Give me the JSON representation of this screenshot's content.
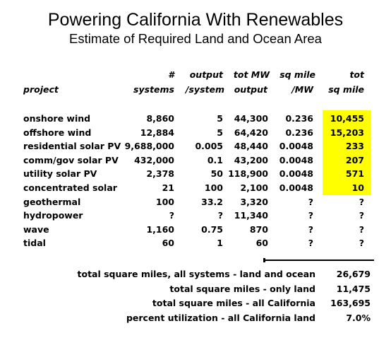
{
  "title": "Powering California With Renewables",
  "subtitle": "Estimate of Required Land and Ocean Area",
  "headers": {
    "project": "project",
    "systems_line1": "#",
    "systems_line2": "systems",
    "output_line1": "output",
    "output_line2": "/system",
    "totmw_line1": "tot MW",
    "totmw_line2": "output",
    "sqmw_line1": "sq mile",
    "sqmw_line2": "/MW",
    "totsq_line1": "tot",
    "totsq_line2": "sq mile"
  },
  "rows": [
    {
      "project": "onshore wind",
      "systems": "8,860",
      "output": "5",
      "tot_mw": "44,300",
      "sq_mw": "0.236",
      "tot_sq": "10,455",
      "highlight": true
    },
    {
      "project": "offshore wind",
      "systems": "12,884",
      "output": "5",
      "tot_mw": "64,420",
      "sq_mw": "0.236",
      "tot_sq": "15,203",
      "highlight": true
    },
    {
      "project": "residential solar PV",
      "systems": "9,688,000",
      "output": "0.005",
      "tot_mw": "48,440",
      "sq_mw": "0.0048",
      "tot_sq": "233",
      "highlight": true
    },
    {
      "project": "comm/gov solar PV",
      "systems": "432,000",
      "output": "0.1",
      "tot_mw": "43,200",
      "sq_mw": "0.0048",
      "tot_sq": "207",
      "highlight": true
    },
    {
      "project": "utility solar PV",
      "systems": "2,378",
      "output": "50",
      "tot_mw": "118,900",
      "sq_mw": "0.0048",
      "tot_sq": "571",
      "highlight": true
    },
    {
      "project": "concentrated solar",
      "systems": "21",
      "output": "100",
      "tot_mw": "2,100",
      "sq_mw": "0.0048",
      "tot_sq": "10",
      "highlight": true
    },
    {
      "project": "geothermal",
      "systems": "100",
      "output": "33.2",
      "tot_mw": "3,320",
      "sq_mw": "?",
      "tot_sq": "?",
      "highlight": false
    },
    {
      "project": "hydropower",
      "systems": "?",
      "output": "?",
      "tot_mw": "11,340",
      "sq_mw": "?",
      "tot_sq": "?",
      "highlight": false
    },
    {
      "project": "wave",
      "systems": "1,160",
      "output": "0.75",
      "tot_mw": "870",
      "sq_mw": "?",
      "tot_sq": "?",
      "highlight": false
    },
    {
      "project": "tidal",
      "systems": "60",
      "output": "1",
      "tot_mw": "60",
      "sq_mw": "?",
      "tot_sq": "?",
      "highlight": false
    }
  ],
  "summary": [
    {
      "label": "total square miles, all systems - land and ocean",
      "value": "26,679"
    },
    {
      "label": "total square miles - only land",
      "value": "11,475"
    },
    {
      "label": "total square miles - all California",
      "value": "163,695"
    },
    {
      "label": "percent utilization - all California land",
      "value": "7.0%"
    }
  ],
  "colors": {
    "highlight": "#ffff00",
    "text": "#000000",
    "background": "#ffffff"
  }
}
